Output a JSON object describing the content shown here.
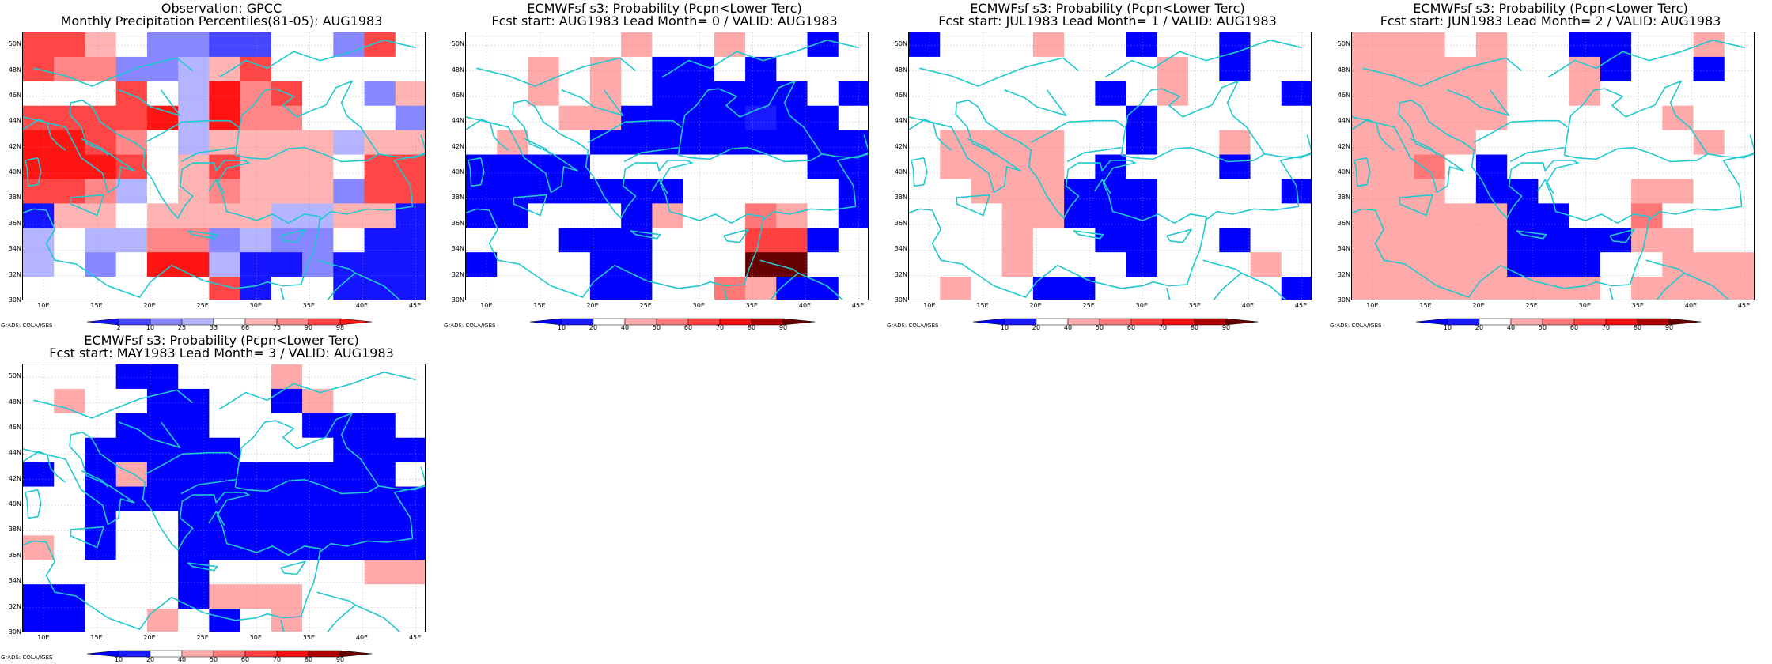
{
  "credit": "GrADS: COLA/IGES",
  "map": {
    "lat_labels": [
      "50N",
      "48N",
      "46N",
      "44N",
      "42N",
      "40N",
      "38N",
      "36N",
      "34N",
      "32N",
      "30N"
    ],
    "lon_labels": [
      "10E",
      "15E",
      "20E",
      "25E",
      "30E",
      "35E",
      "40E",
      "45E"
    ],
    "lon_range": [
      8,
      46
    ],
    "lat_range": [
      30,
      51
    ],
    "coastline_color": "#20c8d0",
    "grid": "dotted"
  },
  "colors": {
    "obs": {
      "boundaries": [
        "2",
        "10",
        "25",
        "33",
        "66",
        "75",
        "90",
        "98"
      ],
      "classes": [
        "#1414ff",
        "#4646ff",
        "#8787ff",
        "#b4b4ff",
        "#ffffff",
        "#ffb4b4",
        "#ff8787",
        "#ff4646",
        "#ff1414"
      ]
    },
    "prob": {
      "boundaries": [
        "10",
        "20",
        "40",
        "50",
        "60",
        "70",
        "80",
        "90"
      ],
      "classes": [
        "#0000ff",
        "#1a1aff",
        "#ffffff",
        "#ffaaaa",
        "#ff7777",
        "#ff4040",
        "#f01010",
        "#aa0000",
        "#660000"
      ]
    }
  },
  "panels": [
    {
      "id": "obs",
      "title1": "Observation: GPCC",
      "title2": "Monthly Precipitation Percentiles(81-05): AUG1983",
      "scale": "obs",
      "grid": [
        "7754221144274",
        "7662235744444",
        "4447438674425",
        "7777838664442",
        "8876435555355",
        "8887457555477",
        "7763456555277",
        "0554555533550",
        "3433662322400",
        "3424883002000",
        "4444447044000"
      ]
    },
    {
      "id": "lead0",
      "title1": "ECMWFsf s3: Probability (Pcpn<Lower Terc)",
      "title2": "Fcst start: AUG1983  Lead Month= 0 / VALID: AUG1983",
      "scale": "prob",
      "grid": [
        "2222232232202",
        "2232320020222",
        "2232320000020",
        "2223300001002",
        "2322000000000",
        "0000222222200",
        "0000000222220",
        "0022203224320",
        "2220002225502",
        "0222002228822",
        "2222002243002"
      ]
    },
    {
      "id": "lead1",
      "title1": "ECMWFsf s3: Probability (Pcpn<Lower Terc)",
      "title2": "Fcst start: JUL1983  Lead Month= 1 / VALID: AUG1983",
      "scale": "prob",
      "grid": [
        "0222322022022",
        "2222222232022",
        "2222220232220",
        "2222222022222",
        "2333322022322",
        "2333320222022",
        "2233300022220",
        "2223300022222",
        "2223220022022",
        "2223222022232",
        "2322002222220"
      ]
    },
    {
      "id": "lead2",
      "title1": "ECMWFsf s3: Probability (Pcpn<Lower Terc)",
      "title2": "Fcst start: JUN1983  Lead Month= 2 / VALID: AUG1983",
      "scale": "prob",
      "grid": [
        "3332322002232",
        "3333322302202",
        "3333322322222",
        "3333322222322",
        "3333222222232",
        "3342022222222",
        "3332002223322",
        "3333300224222",
        "3333300003322",
        "3333300022333",
        "3333333323333"
      ]
    },
    {
      "id": "lead3",
      "title1": "ECMWFsf s3: Probability (Pcpn<Lower Terc)",
      "title2": "Fcst start: MAY1983  Lead Month= 3 / VALID: AUG1983",
      "scale": "prob",
      "grid": [
        "2220022232222",
        "2322002203222",
        "2220002220002",
        "2200000222000",
        "0203000000002",
        "2200000000000",
        "2202200000000",
        "3202200000000",
        "2222202222233",
        "0022203332222",
        "0022320232222"
      ]
    }
  ]
}
